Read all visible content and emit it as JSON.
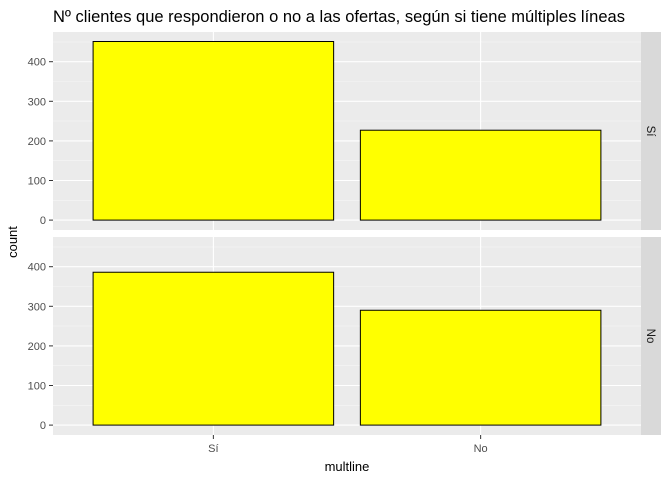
{
  "chart_data": {
    "type": "bar",
    "title": "Nº clientes que respondieron o no a las ofertas, según si tiene  múltiples líneas",
    "xlabel": "multline",
    "ylabel": "count",
    "categories": [
      "Sí",
      "No"
    ],
    "ylim": [
      0,
      450
    ],
    "yticks": [
      0,
      100,
      200,
      300,
      400
    ],
    "facets": [
      {
        "strip": "Sí",
        "values": [
          451,
          227
        ]
      },
      {
        "strip": "No",
        "values": [
          386,
          290
        ]
      }
    ],
    "bar_fill": "#ffff00",
    "bar_stroke": "#000000",
    "panel_background": "#ebebeb",
    "strip_background": "#d9d9d9",
    "grid": true,
    "facet_layout": "rows",
    "legend": "none"
  }
}
